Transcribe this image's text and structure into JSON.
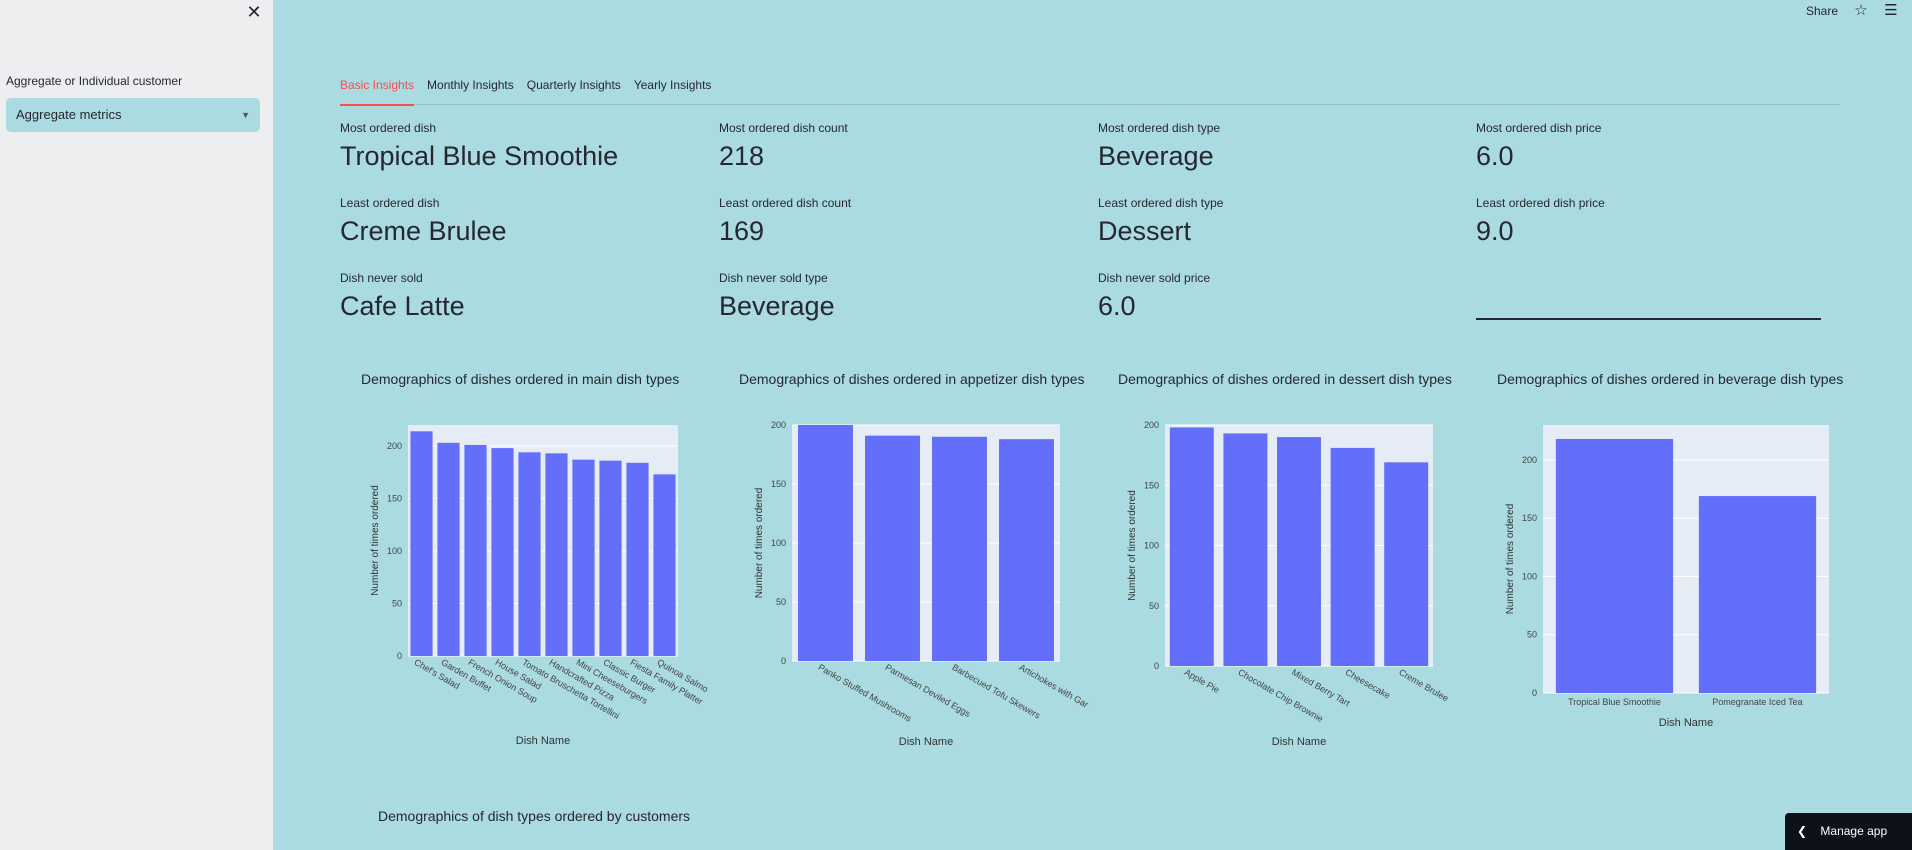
{
  "sidebar": {
    "close_icon": "close-icon",
    "field_label": "Aggregate or Individual customer",
    "select_value": "Aggregate metrics"
  },
  "header": {
    "share_label": "Share",
    "star_icon": "star-icon",
    "menu_icon": "hamburger-menu-icon"
  },
  "tabs": [
    {
      "label": "Basic Insights",
      "active": true
    },
    {
      "label": "Monthly Insights",
      "active": false
    },
    {
      "label": "Quarterly Insights",
      "active": false
    },
    {
      "label": "Yearly Insights",
      "active": false
    }
  ],
  "metrics": {
    "most_ordered_dish": {
      "label": "Most ordered dish",
      "value": "Tropical Blue Smoothie"
    },
    "most_ordered_dish_count": {
      "label": "Most ordered dish count",
      "value": "218"
    },
    "most_ordered_dish_type": {
      "label": "Most ordered dish type",
      "value": "Beverage"
    },
    "most_ordered_dish_price": {
      "label": "Most ordered dish price",
      "value": "6.0"
    },
    "least_ordered_dish": {
      "label": "Least ordered dish",
      "value": "Creme Brulee"
    },
    "least_ordered_dish_count": {
      "label": "Least ordered dish count",
      "value": "169"
    },
    "least_ordered_dish_type": {
      "label": "Least ordered dish type",
      "value": "Dessert"
    },
    "least_ordered_dish_price": {
      "label": "Least ordered dish price",
      "value": "9.0"
    },
    "dish_never_sold": {
      "label": "Dish never sold",
      "value": "Cafe Latte"
    },
    "dish_never_sold_type": {
      "label": "Dish never sold type",
      "value": "Beverage"
    },
    "dish_never_sold_price": {
      "label": "Dish never sold price",
      "value": "6.0"
    }
  },
  "colors": {
    "bar": "#636efa",
    "plot_bg": "#e5ecf6",
    "accent": "#ff4b4b"
  },
  "chart_data": [
    {
      "type": "bar",
      "title": "Demographics of dishes ordered in main dish types",
      "xlabel": "Dish Name",
      "ylabel": "Number of times ordered",
      "categories": [
        "Chef's Salad",
        "Garden Buffet",
        "French Onion Soup",
        "House Salad",
        "Tomato Bruschetta Tortellini",
        "Handcrafted Pizza",
        "Mini Cheeseburgers",
        "Classic Burger",
        "Fiesta Family Platter",
        "Quinoa Salmon"
      ],
      "tick_labels": [
        "Chef's Salad",
        "Garden Buffet",
        "French Onion Soup",
        "House Salad",
        "Tomato Bruschetta Tortellini",
        "Handcrafted Pizza",
        "Mini Cheeseburgers",
        "Classic Burger",
        "Fiesta Family Platter",
        "Quinoa Salmo"
      ],
      "values": [
        214,
        203,
        201,
        198,
        194,
        193,
        187,
        186,
        184,
        173
      ],
      "ylim": [
        0,
        220
      ],
      "yticks": [
        0,
        50,
        100,
        150,
        200
      ]
    },
    {
      "type": "bar",
      "title": "Demographics of dishes ordered in appetizer dish types",
      "xlabel": "Dish Name",
      "ylabel": "Number of times ordered",
      "categories": [
        "Panko Stuffed Mushrooms",
        "Parmesan Deviled Eggs",
        "Barbecued Tofu Skewers",
        "Artichokes with Garlic"
      ],
      "tick_labels": [
        "Panko Stuffed Mushrooms",
        "Parmesan Deviled Eggs",
        "Barbecued Tofu Skewers",
        "Artichokes with Gar"
      ],
      "values": [
        200,
        191,
        190,
        188
      ],
      "ylim": [
        0,
        200
      ],
      "yticks": [
        0,
        50,
        100,
        150,
        200
      ]
    },
    {
      "type": "bar",
      "title": "Demographics of dishes ordered in dessert dish types",
      "xlabel": "Dish Name",
      "ylabel": "Number of times ordered",
      "categories": [
        "Apple Pie",
        "Chocolate Chip Brownie",
        "Mixed Berry Tart",
        "Cheesecake",
        "Creme Brulee"
      ],
      "tick_labels": [
        "Apple Pie",
        "Chocolate Chip Brownie",
        "Mixed Berry Tart",
        "Cheesecake",
        "Creme Brulee"
      ],
      "values": [
        198,
        193,
        190,
        181,
        169
      ],
      "ylim": [
        0,
        200
      ],
      "yticks": [
        0,
        50,
        100,
        150,
        200
      ]
    },
    {
      "type": "bar",
      "title": "Demographics of dishes ordered in beverage dish types",
      "xlabel": "Dish Name",
      "ylabel": "Number of times ordered",
      "categories": [
        "Tropical Blue Smoothie",
        "Pomegranate Iced Tea"
      ],
      "tick_labels": [
        "Tropical Blue Smoothie",
        "Pomegranate Iced Tea"
      ],
      "values": [
        218,
        169
      ],
      "ylim": [
        0,
        230
      ],
      "yticks": [
        0,
        50,
        100,
        150,
        200
      ]
    }
  ],
  "bottom_section_title": "Demographics of dish types ordered by customers",
  "manage_app": {
    "label": "Manage app",
    "icon": "chevron-left-icon"
  }
}
